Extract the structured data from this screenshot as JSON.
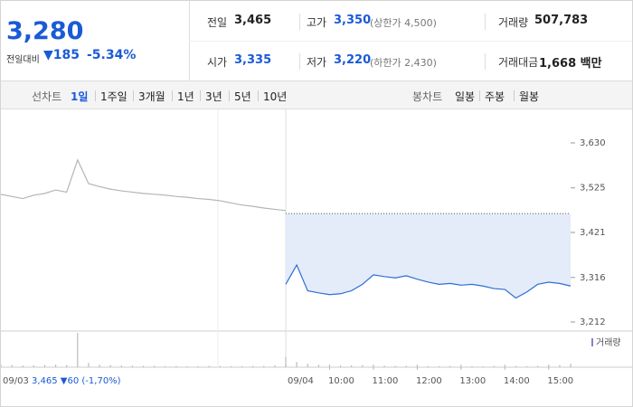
{
  "header": {
    "price": "3,280",
    "change_label": "전일대비",
    "change": "▼185",
    "change_pct": "-5.34%",
    "stats": [
      {
        "label": "전일",
        "value": "3,465"
      },
      {
        "label": "고가",
        "value": "3,350",
        "note": "(상한가 4,500)"
      },
      {
        "label": "거래량",
        "value": "507,783"
      },
      {
        "label": "시가",
        "value": "3,335"
      },
      {
        "label": "저가",
        "value": "3,220",
        "note": "(하한가 2,430)"
      },
      {
        "label": "거래대금",
        "value": "1,668 백만"
      }
    ]
  },
  "tabs": {
    "line_label": "선차트",
    "line_periods": [
      "1일",
      "1주일",
      "3개월",
      "1년",
      "3년",
      "5년",
      "10년"
    ],
    "candle_label": "봉차트",
    "candle_periods": [
      "일봉",
      "주봉",
      "월봉"
    ]
  },
  "chart_data": {
    "type": "line",
    "ylim": [
      3191,
      3708
    ],
    "yticks": [
      {
        "value": 3630,
        "label": "3,630"
      },
      {
        "value": 3525,
        "label": "3,525"
      },
      {
        "value": 3421,
        "label": "3,421"
      },
      {
        "value": 3316,
        "label": "3,316"
      },
      {
        "value": 3212,
        "label": "3,212"
      }
    ],
    "xlim": [
      9,
      15.5
    ],
    "day_labels": [
      "09/03",
      "09/04"
    ],
    "xticks": [
      {
        "value": 10,
        "label": "10:00"
      },
      {
        "value": 11,
        "label": "11:00"
      },
      {
        "value": 12,
        "label": "12:00"
      },
      {
        "value": 13,
        "label": "13:00"
      },
      {
        "value": 14,
        "label": "14:00"
      },
      {
        "value": 15,
        "label": "15:00"
      }
    ],
    "prev_close": 3465,
    "series": [
      {
        "color": "#b5b5b5",
        "values": [
          3510,
          3505,
          3500,
          3508,
          3512,
          3520,
          3515,
          3590,
          3535,
          3528,
          3522,
          3518,
          3515,
          3512,
          3510,
          3508,
          3505,
          3503,
          3500,
          3498,
          3495,
          3490,
          3485,
          3482,
          3478,
          3475,
          3472
        ]
      },
      {
        "color": "#2f6fd6",
        "values": [
          3300,
          3345,
          3285,
          3280,
          3276,
          3278,
          3285,
          3300,
          3322,
          3318,
          3315,
          3320,
          3312,
          3305,
          3300,
          3302,
          3298,
          3300,
          3296,
          3290,
          3288,
          3268,
          3282,
          3300,
          3305,
          3302,
          3296
        ]
      }
    ],
    "fill_color": "#e4ecf9",
    "volume_label": "거래량",
    "volume_color": "#8b7fc7",
    "volume": [
      [
        3000,
        2500,
        2000,
        2200,
        2600,
        3000,
        2500,
        40000,
        5000,
        3000,
        2500,
        2000,
        1800,
        1500,
        1600,
        1400,
        1500,
        1300,
        1200,
        1500,
        1400,
        1300,
        1200,
        1500,
        1600,
        2000,
        3000
      ],
      [
        12000,
        6000,
        4000,
        3000,
        2500,
        2000,
        2200,
        2500,
        2000,
        1800,
        1500,
        1600,
        1400,
        1300,
        1200,
        1500,
        1400,
        1300,
        1200,
        1600,
        1500,
        1400,
        1300,
        1500,
        1800,
        2500,
        4000
      ]
    ],
    "summary": "3,465 ▼60 (-1,70%)"
  }
}
